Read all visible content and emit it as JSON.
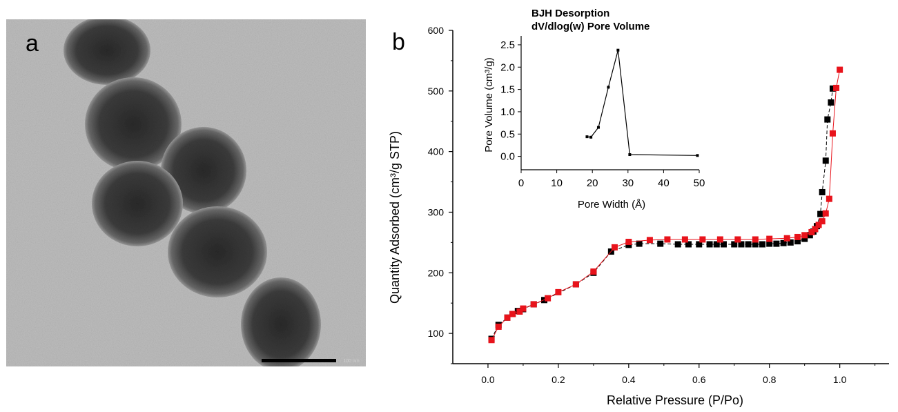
{
  "panel_a": {
    "label": "a",
    "scale_bar_text": "100 nm"
  },
  "panel_b": {
    "label": "b"
  },
  "chart_data": [
    {
      "type": "scatter",
      "xlabel": "Relative Pressure (P/Po)",
      "ylabel": "Quantity Adsorbed (cm³/g STP)",
      "xlim": [
        -0.1,
        1.14
      ],
      "ylim": [
        50,
        600
      ],
      "x_ticks": [
        0.0,
        0.2,
        0.4,
        0.6,
        0.8,
        1.0
      ],
      "y_ticks": [
        100,
        200,
        300,
        400,
        500,
        600
      ],
      "x_tick_labels": [
        "0.0",
        "0.2",
        "0.4",
        "0.6",
        "0.8",
        "1.0"
      ],
      "y_tick_labels": [
        "100",
        "200",
        "300",
        "400",
        "500",
        "600"
      ],
      "grid": false,
      "legend": "none",
      "series": [
        {
          "color": "#000000",
          "marker": "square",
          "line": "dashed",
          "x": [
            0.01,
            0.03,
            0.055,
            0.07,
            0.085,
            0.1,
            0.13,
            0.16,
            0.25,
            0.3,
            0.35,
            0.4,
            0.43,
            0.49,
            0.54,
            0.57,
            0.6,
            0.63,
            0.65,
            0.67,
            0.7,
            0.72,
            0.74,
            0.76,
            0.78,
            0.8,
            0.82,
            0.84,
            0.86,
            0.88,
            0.9,
            0.915,
            0.925,
            0.935,
            0.945,
            0.95,
            0.96,
            0.965,
            0.975,
            0.98
          ],
          "y": [
            91,
            114,
            126,
            132,
            137,
            140,
            148,
            155,
            181,
            200,
            235,
            246,
            248,
            248,
            247,
            247,
            247,
            247,
            247,
            247,
            247,
            247,
            247,
            247,
            247,
            248,
            248,
            249,
            250,
            252,
            256,
            262,
            268,
            277,
            297,
            333,
            385,
            453,
            481,
            504
          ]
        },
        {
          "color": "#e8131b",
          "marker": "square",
          "line": "solid",
          "x": [
            0.01,
            0.03,
            0.055,
            0.07,
            0.09,
            0.1,
            0.13,
            0.17,
            0.2,
            0.25,
            0.3,
            0.36,
            0.4,
            0.46,
            0.51,
            0.56,
            0.61,
            0.66,
            0.71,
            0.76,
            0.8,
            0.85,
            0.88,
            0.9,
            0.92,
            0.93,
            0.94,
            0.95,
            0.96,
            0.97,
            0.98,
            0.99,
            1.0
          ],
          "y": [
            89,
            111,
            126,
            132,
            136,
            141,
            148,
            158,
            168,
            181,
            202,
            242,
            251,
            254,
            255,
            255,
            255,
            255,
            255,
            255,
            256,
            257,
            259,
            262,
            267,
            272,
            279,
            285,
            298,
            322,
            430,
            505,
            535
          ]
        }
      ]
    },
    {
      "type": "line",
      "title": "BJH Desorption\ndV/dlog(w) Pore Volume",
      "title_lines": [
        "BJH Desorption",
        "dV/dlog(w) Pore Volume"
      ],
      "xlabel": "Pore Width (Å)",
      "ylabel": "Pore Volume (cm³/g)",
      "xlim": [
        0,
        50
      ],
      "ylim": [
        -0.3,
        2.7
      ],
      "x_ticks": [
        0,
        10,
        20,
        30,
        40,
        50
      ],
      "y_ticks": [
        0.0,
        0.5,
        1.0,
        1.5,
        2.0,
        2.5
      ],
      "x_tick_labels": [
        "0",
        "10",
        "20",
        "30",
        "40",
        "50"
      ],
      "y_tick_labels": [
        "0.0",
        "0.5",
        "1.0",
        "1.5",
        "2.0",
        "2.5"
      ],
      "grid": false,
      "series": [
        {
          "color": "#000000",
          "marker": "square-small",
          "x": [
            18.5,
            19.6,
            21.7,
            24.5,
            27.2,
            30.5,
            49.5
          ],
          "y": [
            0.44,
            0.43,
            0.65,
            1.55,
            2.38,
            0.04,
            0.02
          ]
        }
      ]
    }
  ]
}
